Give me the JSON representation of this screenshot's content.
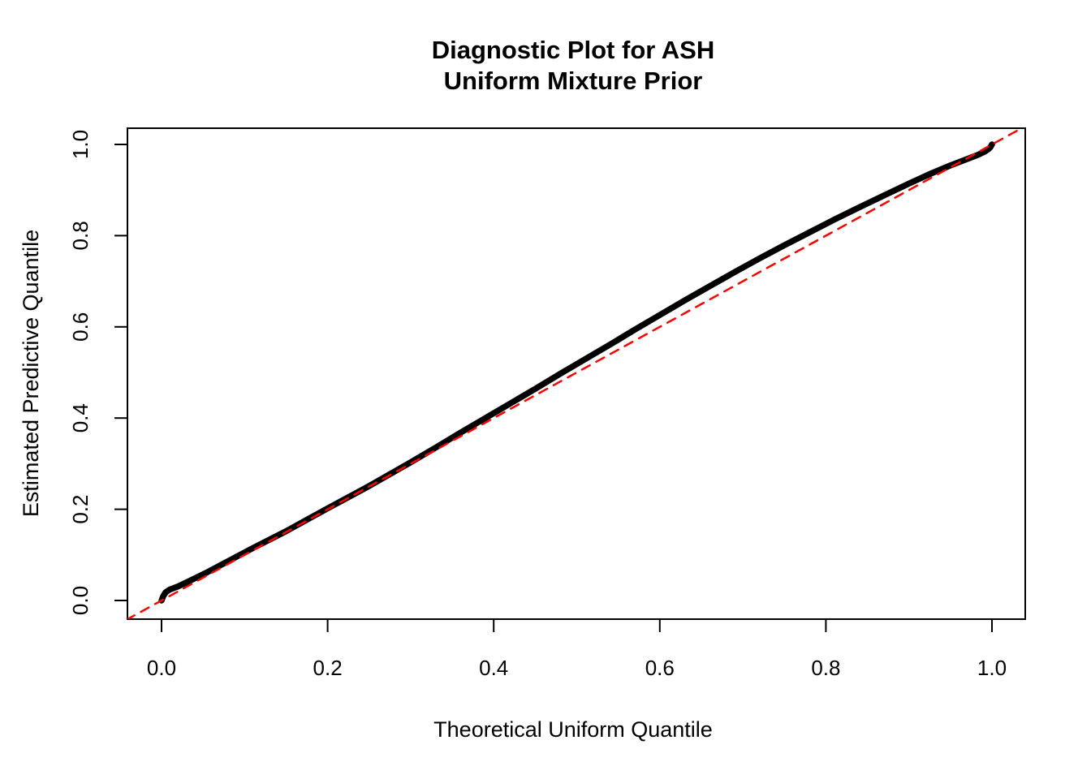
{
  "title": {
    "line1": "Diagnostic Plot for ASH",
    "line2": "Uniform Mixture Prior"
  },
  "chart_data": {
    "type": "line",
    "title": "Diagnostic Plot for ASH\nUniform Mixture Prior",
    "xlabel": "Theoretical Uniform Quantile",
    "ylabel": "Estimated Predictive Quantile",
    "xlim": [
      -0.042,
      1.042
    ],
    "ylim": [
      -0.041,
      1.036
    ],
    "grid": false,
    "legend_position": "none",
    "background_color": "#ffffff",
    "axis_color": "#000000",
    "x_ticks": [
      {
        "value": 0.0,
        "label": "0.0"
      },
      {
        "value": 0.2,
        "label": "0.2"
      },
      {
        "value": 0.4,
        "label": "0.4"
      },
      {
        "value": 0.6,
        "label": "0.6"
      },
      {
        "value": 0.8,
        "label": "0.8"
      },
      {
        "value": 1.0,
        "label": "1.0"
      }
    ],
    "y_ticks": [
      {
        "value": 0.0,
        "label": "0.0"
      },
      {
        "value": 0.2,
        "label": "0.2"
      },
      {
        "value": 0.4,
        "label": "0.4"
      },
      {
        "value": 0.6,
        "label": "0.6"
      },
      {
        "value": 0.8,
        "label": "0.8"
      },
      {
        "value": 1.0,
        "label": "1.0"
      }
    ],
    "series": [
      {
        "name": "estimated-vs-theoretical-quantile-curve",
        "type": "line",
        "color": "#000000",
        "line_style": "solid",
        "line_width": 7.5,
        "points": [
          [
            0.0,
            0.0
          ],
          [
            0.002,
            0.009
          ],
          [
            0.005,
            0.018
          ],
          [
            0.01,
            0.024
          ],
          [
            0.02,
            0.031
          ],
          [
            0.035,
            0.044
          ],
          [
            0.055,
            0.062
          ],
          [
            0.08,
            0.086
          ],
          [
            0.11,
            0.115
          ],
          [
            0.15,
            0.152
          ],
          [
            0.2,
            0.202
          ],
          [
            0.25,
            0.251
          ],
          [
            0.3,
            0.303
          ],
          [
            0.33,
            0.335
          ],
          [
            0.36,
            0.368
          ],
          [
            0.39,
            0.4
          ],
          [
            0.42,
            0.432
          ],
          [
            0.45,
            0.464
          ],
          [
            0.48,
            0.497
          ],
          [
            0.51,
            0.529
          ],
          [
            0.54,
            0.561
          ],
          [
            0.57,
            0.594
          ],
          [
            0.6,
            0.626
          ],
          [
            0.63,
            0.658
          ],
          [
            0.66,
            0.689
          ],
          [
            0.69,
            0.72
          ],
          [
            0.72,
            0.75
          ],
          [
            0.75,
            0.779
          ],
          [
            0.78,
            0.807
          ],
          [
            0.81,
            0.835
          ],
          [
            0.84,
            0.862
          ],
          [
            0.87,
            0.888
          ],
          [
            0.9,
            0.914
          ],
          [
            0.925,
            0.935
          ],
          [
            0.95,
            0.954
          ],
          [
            0.97,
            0.968
          ],
          [
            0.983,
            0.977
          ],
          [
            0.991,
            0.984
          ],
          [
            0.996,
            0.99
          ],
          [
            0.998,
            0.994
          ],
          [
            1.0,
            1.0
          ]
        ]
      },
      {
        "name": "identity-reference-line",
        "type": "line",
        "color": "#FF0000",
        "line_style": "dashed",
        "line_width": 2.5,
        "dash_pattern": "11 9",
        "points": [
          [
            -0.042,
            -0.042
          ],
          [
            1.042,
            1.042
          ]
        ]
      }
    ]
  }
}
